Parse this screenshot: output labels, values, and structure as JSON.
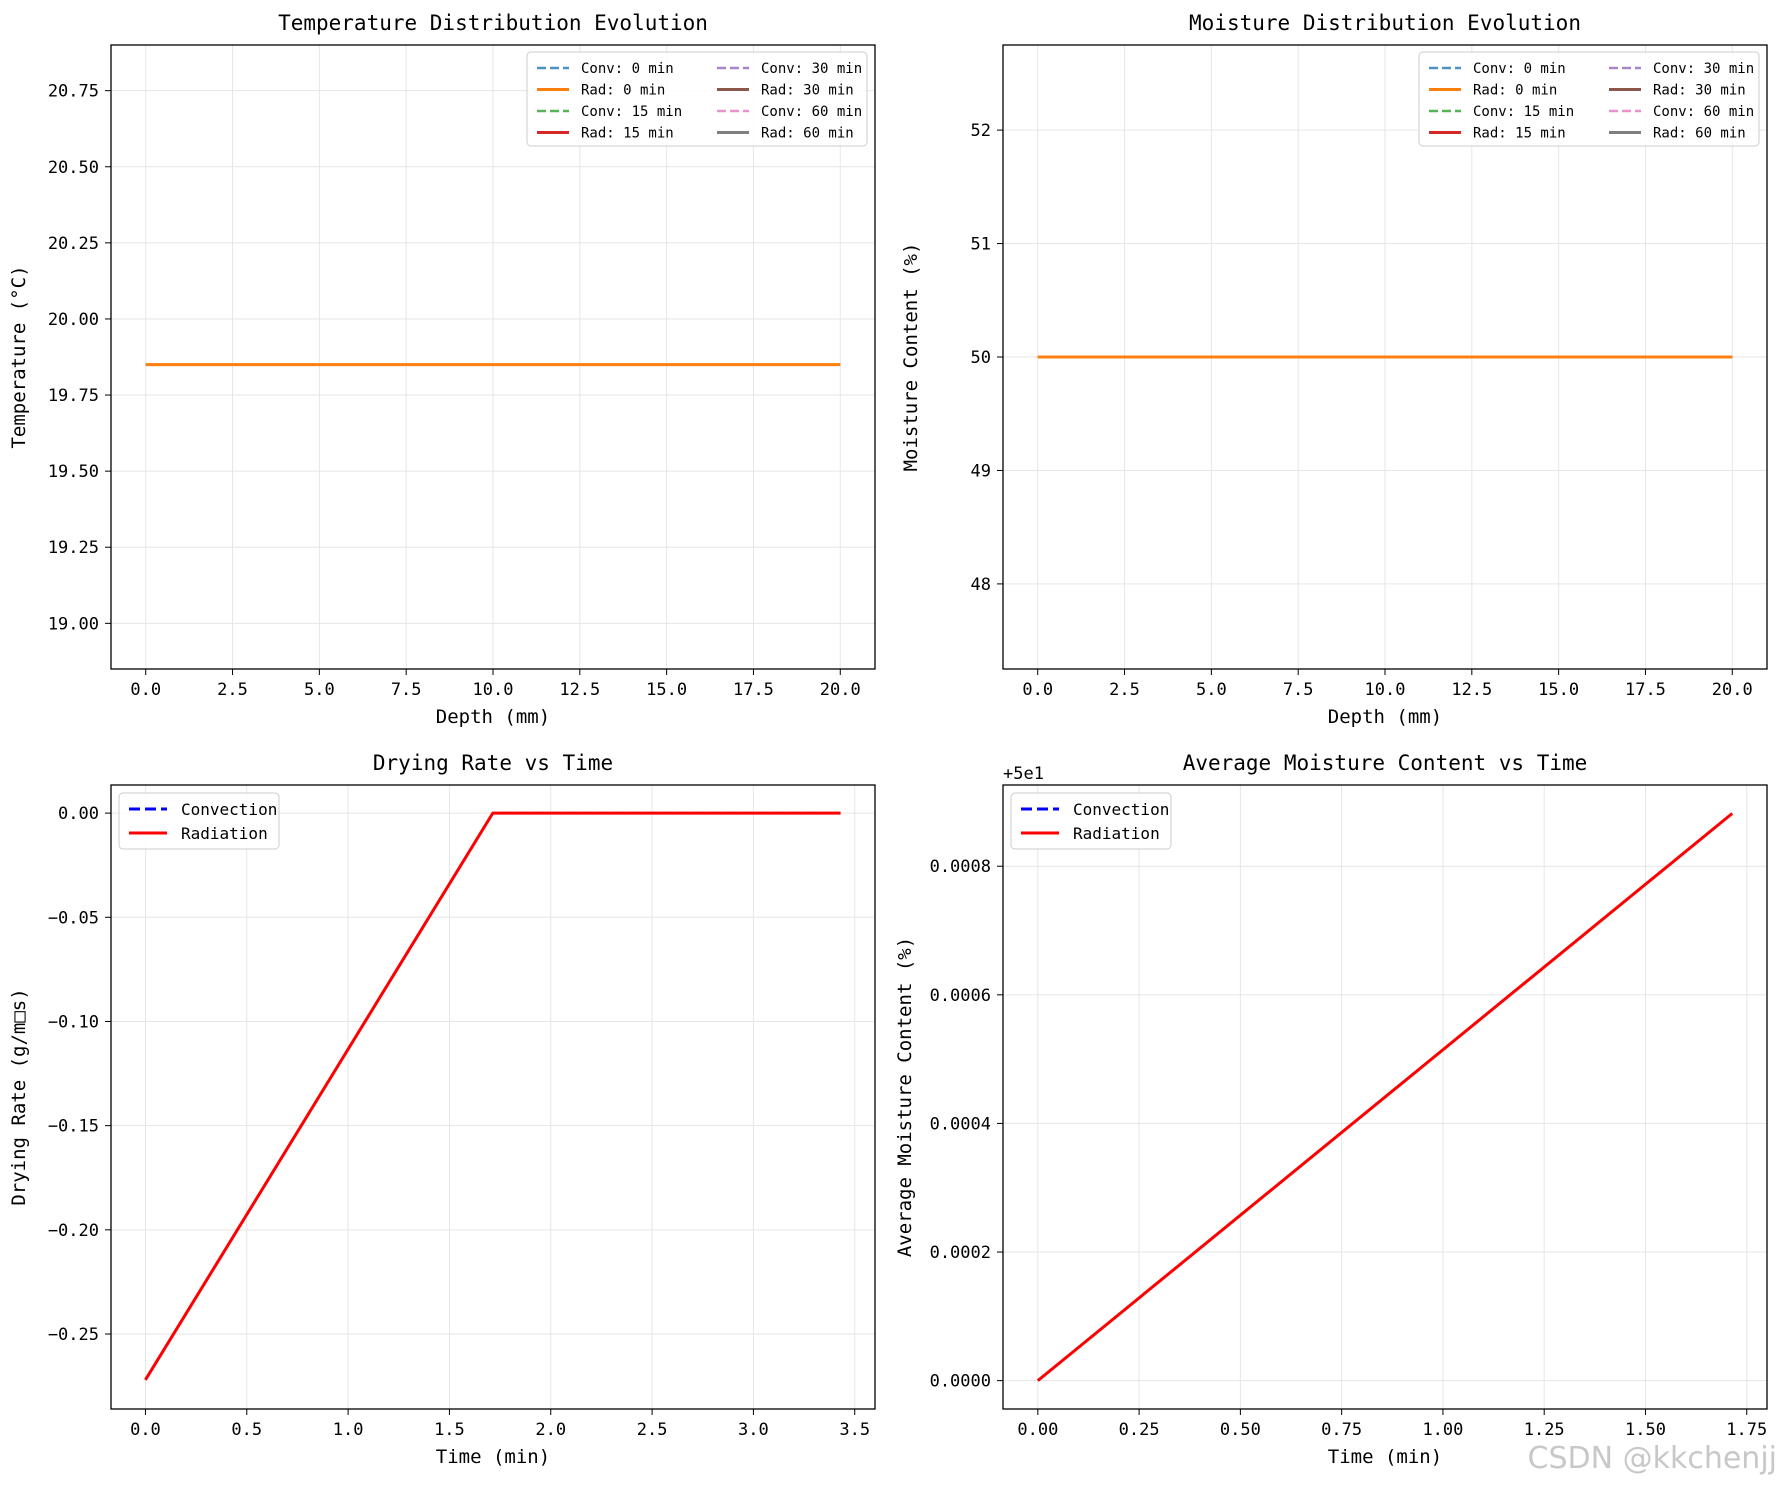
{
  "watermark": "CSDN @kkchenjj",
  "chart_data": [
    {
      "type": "line",
      "title": "Temperature Distribution Evolution",
      "xlabel": "Depth (mm)",
      "ylabel": "Temperature (°C)",
      "xlim": [
        -1.0,
        21.0
      ],
      "ylim": [
        18.85,
        20.9
      ],
      "xticks": [
        "0.0",
        "2.5",
        "5.0",
        "7.5",
        "10.0",
        "12.5",
        "15.0",
        "17.5",
        "20.0"
      ],
      "yticks": [
        "19.00",
        "19.25",
        "19.50",
        "19.75",
        "20.00",
        "20.25",
        "20.50",
        "20.75"
      ],
      "grid": true,
      "legend_position": "upper right",
      "legend_columns": 2,
      "series": [
        {
          "name": "Conv: 0 min",
          "color": "#1f77b4",
          "style": "dashed",
          "x": [
            0,
            20
          ],
          "y": [
            19.85,
            19.85
          ]
        },
        {
          "name": "Rad: 0 min",
          "color": "#ff7f0e",
          "style": "solid",
          "x": [
            0,
            20
          ],
          "y": [
            19.85,
            19.85
          ]
        },
        {
          "name": "Conv: 15 min",
          "color": "#2ca02c",
          "style": "dashed",
          "x": [],
          "y": []
        },
        {
          "name": "Rad: 15 min",
          "color": "#d62728",
          "style": "solid",
          "x": [],
          "y": []
        },
        {
          "name": "Conv: 30 min",
          "color": "#9467bd",
          "style": "dashed",
          "x": [],
          "y": []
        },
        {
          "name": "Rad: 30 min",
          "color": "#8c564b",
          "style": "solid",
          "x": [],
          "y": []
        },
        {
          "name": "Conv: 60 min",
          "color": "#e377c2",
          "style": "dashed",
          "x": [],
          "y": []
        },
        {
          "name": "Rad: 60 min",
          "color": "#7f7f7f",
          "style": "solid",
          "x": [],
          "y": []
        }
      ]
    },
    {
      "type": "line",
      "title": "Moisture Distribution Evolution",
      "xlabel": "Depth (mm)",
      "ylabel": "Moisture Content (%)",
      "xlim": [
        -1.0,
        21.0
      ],
      "ylim": [
        47.25,
        52.75
      ],
      "xticks": [
        "0.0",
        "2.5",
        "5.0",
        "7.5",
        "10.0",
        "12.5",
        "15.0",
        "17.5",
        "20.0"
      ],
      "yticks": [
        "48",
        "49",
        "50",
        "51",
        "52"
      ],
      "grid": true,
      "legend_position": "upper right",
      "legend_columns": 2,
      "series": [
        {
          "name": "Conv: 0 min",
          "color": "#1f77b4",
          "style": "dashed",
          "x": [
            0,
            20
          ],
          "y": [
            50,
            50
          ]
        },
        {
          "name": "Rad: 0 min",
          "color": "#ff7f0e",
          "style": "solid",
          "x": [
            0,
            20
          ],
          "y": [
            50,
            50
          ]
        },
        {
          "name": "Conv: 15 min",
          "color": "#2ca02c",
          "style": "dashed",
          "x": [],
          "y": []
        },
        {
          "name": "Rad: 15 min",
          "color": "#d62728",
          "style": "solid",
          "x": [],
          "y": []
        },
        {
          "name": "Conv: 30 min",
          "color": "#9467bd",
          "style": "dashed",
          "x": [],
          "y": []
        },
        {
          "name": "Rad: 30 min",
          "color": "#8c564b",
          "style": "solid",
          "x": [],
          "y": []
        },
        {
          "name": "Conv: 60 min",
          "color": "#e377c2",
          "style": "dashed",
          "x": [],
          "y": []
        },
        {
          "name": "Rad: 60 min",
          "color": "#7f7f7f",
          "style": "solid",
          "x": [],
          "y": []
        }
      ]
    },
    {
      "type": "line",
      "title": "Drying Rate vs Time",
      "xlabel": "Time (min)",
      "ylabel": "Drying Rate (g/m□s)",
      "xlim": [
        -0.17,
        3.6
      ],
      "ylim": [
        -0.286,
        0.0135
      ],
      "xticks": [
        "0.0",
        "0.5",
        "1.0",
        "1.5",
        "2.0",
        "2.5",
        "3.0",
        "3.5"
      ],
      "yticks": [
        "0.00",
        "−0.05",
        "−0.10",
        "−0.15",
        "−0.20",
        "−0.25"
      ],
      "grid": true,
      "legend_position": "upper left",
      "series": [
        {
          "name": "Convection",
          "color": "#0000ff",
          "style": "dashed",
          "x": [
            0,
            1.714,
            3.43
          ],
          "y": [
            -0.272,
            0,
            0
          ]
        },
        {
          "name": "Radiation",
          "color": "#ff0000",
          "style": "solid",
          "x": [
            0,
            1.714,
            3.43
          ],
          "y": [
            -0.272,
            0,
            0
          ]
        }
      ]
    },
    {
      "type": "line",
      "title": "Average Moisture Content vs Time",
      "xlabel": "Time (min)",
      "ylabel": "Average Moisture Content (%)",
      "offset_text": "+5e1",
      "xlim": [
        -0.086,
        1.8
      ],
      "ylim": [
        -4.41e-05,
        0.0009263
      ],
      "xticks": [
        "0.00",
        "0.25",
        "0.50",
        "0.75",
        "1.00",
        "1.25",
        "1.50",
        "1.75"
      ],
      "yticks": [
        "0.0000",
        "0.0002",
        "0.0004",
        "0.0006",
        "0.0008"
      ],
      "grid": true,
      "legend_position": "upper left",
      "series": [
        {
          "name": "Convection",
          "color": "#0000ff",
          "style": "dashed",
          "x": [
            0,
            1.714
          ],
          "y": [
            0,
            0.000882
          ]
        },
        {
          "name": "Radiation",
          "color": "#ff0000",
          "style": "solid",
          "x": [
            0,
            1.714
          ],
          "y": [
            0,
            0.000882
          ]
        }
      ]
    }
  ]
}
